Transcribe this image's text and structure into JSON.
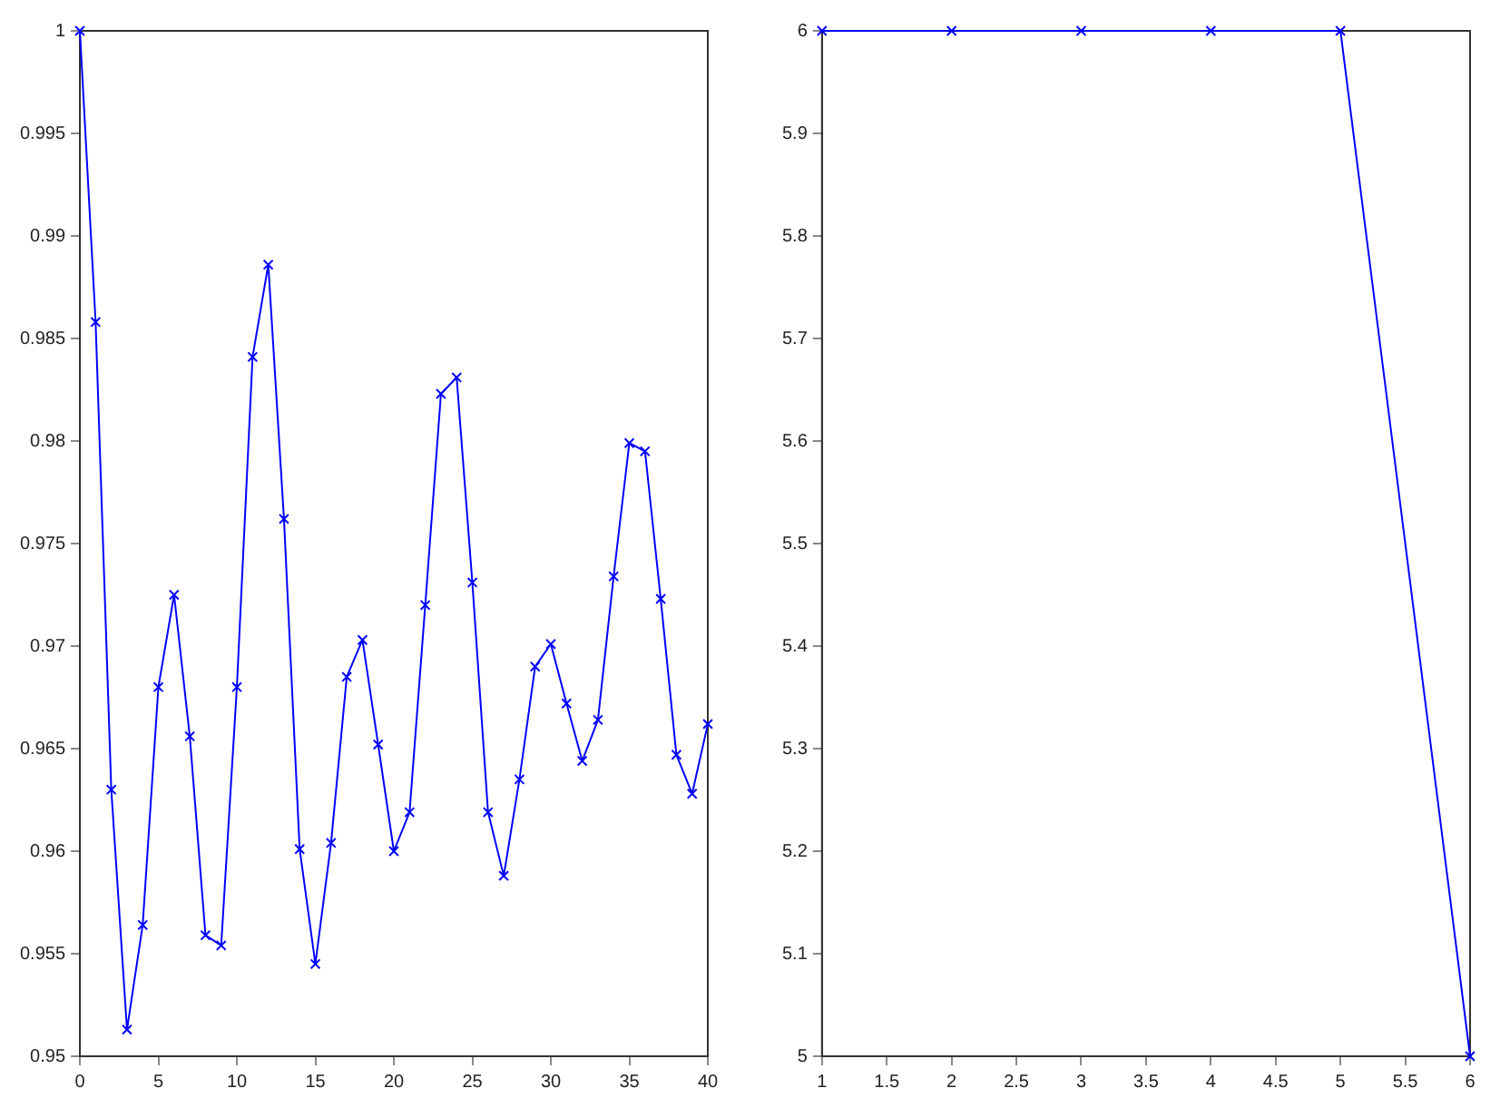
{
  "chart_data": [
    {
      "type": "line",
      "x": [
        0,
        1,
        2,
        3,
        4,
        5,
        6,
        7,
        8,
        9,
        10,
        11,
        12,
        13,
        14,
        15,
        16,
        17,
        18,
        19,
        20,
        21,
        22,
        23,
        24,
        25,
        26,
        27,
        28,
        29,
        30,
        31,
        32,
        33,
        34,
        35,
        36,
        37,
        38,
        39,
        40
      ],
      "series": [
        {
          "color": "#0000ff",
          "values": [
            1.0,
            0.9858,
            0.963,
            0.9513,
            0.9564,
            0.968,
            0.9725,
            0.9656,
            0.9559,
            0.9554,
            0.968,
            0.9841,
            0.9886,
            0.9762,
            0.9601,
            0.9545,
            0.9604,
            0.9685,
            0.9703,
            0.9652,
            0.96,
            0.9619,
            0.972,
            0.9823,
            0.9831,
            0.9731,
            0.9619,
            0.9588,
            0.9635,
            0.969,
            0.9701,
            0.9672,
            0.9644,
            0.9664,
            0.9734,
            0.9799,
            0.9795,
            0.9723,
            0.9647,
            0.9628,
            0.9662
          ]
        }
      ],
      "marker": "cross",
      "line_style": "solid",
      "xlim": [
        0,
        40
      ],
      "xticks": [
        0,
        5,
        10,
        15,
        20,
        25,
        30,
        35,
        40
      ],
      "ylim": [
        0.95,
        1
      ],
      "yticks": [
        0.95,
        0.955,
        0.96,
        0.965,
        0.97,
        0.975,
        0.98,
        0.985,
        0.99,
        0.995,
        1
      ]
    },
    {
      "type": "line",
      "x": [
        1,
        2,
        3,
        4,
        5,
        6
      ],
      "series": [
        {
          "color": "#0000ff",
          "values": [
            6,
            6,
            6,
            6,
            6,
            5
          ]
        }
      ],
      "marker": "cross",
      "line_style": "solid",
      "xlim": [
        1,
        6
      ],
      "xticks": [
        1,
        1.5,
        2,
        2.5,
        3,
        3.5,
        4,
        4.5,
        5,
        5.5,
        6
      ],
      "ylim": [
        5,
        6
      ],
      "yticks": [
        5,
        5.1,
        5.2,
        5.3,
        5.4,
        5.5,
        5.6,
        5.7,
        5.8,
        5.9,
        6
      ]
    }
  ]
}
